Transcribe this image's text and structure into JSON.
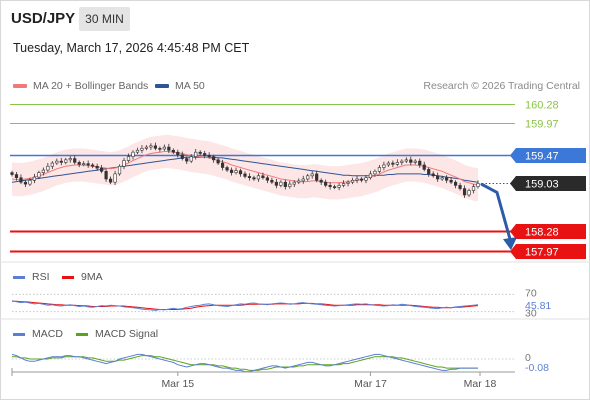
{
  "header": {
    "symbol": "USD/JPY",
    "timeframe": "30 MIN",
    "timestamp": "Tuesday, March 17, 2026 4:45:48 PM CET",
    "credit": "Research © 2026 Trading Central"
  },
  "legend": {
    "ma20": "MA 20 + Bollinger Bands",
    "ma50": "MA 50"
  },
  "colors": {
    "ma20": "#f07a7a",
    "ma50": "#2f5597",
    "band_fill": "#fde3e3",
    "resistance": "#8cc34a",
    "pivot": "#3c78d8",
    "support": "#e81212",
    "current": "#2a2a2a",
    "rsi": "#5b7fd6",
    "rsi_ma": "#e81212",
    "macd": "#5b7fd6",
    "macd_signal": "#5aa31c",
    "arrow": "#2a5ca8"
  },
  "chart_data": [
    {
      "type": "candlestick",
      "panel": "price",
      "y_range": [
        157.8,
        160.4
      ],
      "x_ticks": [
        "Mar 15",
        "Mar 17",
        "Mar 18"
      ],
      "levels": [
        {
          "name": "resistance",
          "value": 160.28,
          "label": "160.28"
        },
        {
          "name": "resistance",
          "value": 159.97,
          "label": "159.97"
        },
        {
          "name": "pivot",
          "value": 159.47,
          "label": "159.47"
        },
        {
          "name": "current",
          "value": 159.03,
          "label": "159.03"
        },
        {
          "name": "support",
          "value": 158.28,
          "label": "158.28"
        },
        {
          "name": "support",
          "value": 157.97,
          "label": "157.97"
        }
      ],
      "forecast": {
        "direction": "down",
        "from": 159.03,
        "to": 157.97
      },
      "close": [
        159.17,
        159.12,
        159.05,
        159.02,
        159.08,
        159.13,
        159.2,
        159.24,
        159.3,
        159.35,
        159.38,
        159.36,
        159.4,
        159.42,
        159.36,
        159.33,
        159.34,
        159.32,
        159.3,
        159.27,
        159.22,
        159.1,
        159.05,
        159.18,
        159.3,
        159.39,
        159.45,
        159.52,
        159.55,
        159.58,
        159.6,
        159.62,
        159.58,
        159.57,
        159.6,
        159.55,
        159.52,
        159.48,
        159.42,
        159.38,
        159.45,
        159.52,
        159.5,
        159.47,
        159.45,
        159.4,
        159.35,
        159.28,
        159.24,
        159.2,
        159.23,
        159.18,
        159.14,
        159.12,
        159.1,
        159.15,
        159.12,
        159.08,
        159.05,
        159.0,
        159.05,
        158.98,
        159.02,
        159.05,
        159.07,
        159.1,
        159.15,
        159.18,
        159.08,
        159.05,
        159.0,
        158.98,
        158.97,
        159.0,
        159.03,
        159.05,
        159.08,
        159.1,
        159.08,
        159.12,
        159.18,
        159.22,
        159.28,
        159.32,
        159.35,
        159.33,
        159.36,
        159.38,
        159.4,
        159.36,
        159.38,
        159.32,
        159.25,
        159.18,
        159.15,
        159.1,
        159.12,
        159.08,
        159.05,
        159.0,
        158.95,
        158.85,
        158.92,
        158.98,
        159.03
      ],
      "ma20": [
        159.1,
        159.09,
        159.09,
        159.1,
        159.11,
        159.13,
        159.15,
        159.17,
        159.2,
        159.23,
        159.26,
        159.28,
        159.3,
        159.31,
        159.32,
        159.32,
        159.32,
        159.31,
        159.3,
        159.29,
        159.28,
        159.27,
        159.26,
        159.27,
        159.29,
        159.32,
        159.35,
        159.39,
        159.42,
        159.45,
        159.48,
        159.5,
        159.51,
        159.52,
        159.53,
        159.53,
        159.52,
        159.51,
        159.5,
        159.48,
        159.47,
        159.46,
        159.45,
        159.44,
        159.43,
        159.41,
        159.39,
        159.37,
        159.35,
        159.32,
        159.3,
        159.28,
        159.26,
        159.24,
        159.22,
        159.2,
        159.18,
        159.16,
        159.14,
        159.12,
        159.1,
        159.09,
        159.08,
        159.07,
        159.06,
        159.06,
        159.06,
        159.07,
        159.07,
        159.06,
        159.05,
        159.04,
        159.04,
        159.04,
        159.05,
        159.06,
        159.07,
        159.08,
        159.09,
        159.11,
        159.13,
        159.15,
        159.18,
        159.21,
        159.24,
        159.26,
        159.28,
        159.3,
        159.32,
        159.32,
        159.32,
        159.31,
        159.3,
        159.28,
        159.26,
        159.24,
        159.22,
        159.19,
        159.16,
        159.13,
        159.1,
        159.06,
        159.04,
        159.02,
        159.01
      ],
      "ma50": [
        159.05,
        159.06,
        159.07,
        159.08,
        159.09,
        159.1,
        159.11,
        159.12,
        159.13,
        159.14,
        159.15,
        159.16,
        159.17,
        159.18,
        159.19,
        159.2,
        159.21,
        159.22,
        159.23,
        159.24,
        159.25,
        159.26,
        159.27,
        159.28,
        159.29,
        159.3,
        159.31,
        159.32,
        159.33,
        159.34,
        159.35,
        159.36,
        159.37,
        159.38,
        159.39,
        159.4,
        159.41,
        159.42,
        159.43,
        159.44,
        159.44,
        159.44,
        159.44,
        159.44,
        159.44,
        159.44,
        159.43,
        159.43,
        159.42,
        159.41,
        159.4,
        159.39,
        159.38,
        159.37,
        159.36,
        159.35,
        159.34,
        159.33,
        159.32,
        159.31,
        159.3,
        159.29,
        159.28,
        159.27,
        159.26,
        159.25,
        159.24,
        159.23,
        159.22,
        159.21,
        159.2,
        159.19,
        159.18,
        159.17,
        159.16,
        159.16,
        159.15,
        159.15,
        159.15,
        159.15,
        159.15,
        159.15,
        159.16,
        159.16,
        159.17,
        159.17,
        159.18,
        159.18,
        159.18,
        159.18,
        159.18,
        159.18,
        159.17,
        159.17,
        159.16,
        159.15,
        159.14,
        159.13,
        159.12,
        159.11,
        159.1,
        159.08,
        159.07,
        159.06,
        159.05
      ],
      "bb_width": 0.26
    },
    {
      "type": "line",
      "panel": "rsi",
      "y_range": [
        20,
        80
      ],
      "levels": [
        {
          "value": 70,
          "label": "70"
        },
        {
          "value": 30,
          "label": "30"
        }
      ],
      "last_value": 45.81,
      "series": [
        {
          "name": "RSI",
          "values": [
            55,
            53,
            51,
            52,
            50,
            48,
            49,
            47,
            45,
            46,
            44,
            43,
            45,
            46,
            44,
            42,
            43,
            41,
            40,
            42,
            44,
            43,
            45,
            44,
            43,
            41,
            40,
            39,
            38,
            36,
            35,
            34,
            33,
            35,
            34,
            36,
            38,
            36,
            37,
            40,
            42,
            44,
            45,
            47,
            48,
            46,
            44,
            43,
            42,
            44,
            46,
            48,
            47,
            49,
            50,
            48,
            47,
            46,
            48,
            49,
            50,
            49,
            47,
            48,
            50,
            51,
            49,
            48,
            47,
            46,
            45,
            44,
            43,
            44,
            45,
            46,
            47,
            48,
            47,
            48,
            46,
            45,
            44,
            43,
            44,
            46,
            45,
            47,
            46,
            44,
            42,
            41,
            40,
            39,
            38,
            37,
            39,
            40,
            39,
            41,
            42,
            43,
            44,
            45,
            45.81
          ]
        },
        {
          "name": "9MA",
          "values": [
            54,
            54,
            53,
            53,
            52,
            51,
            50,
            49,
            48,
            47,
            46,
            46,
            45,
            45,
            45,
            44,
            44,
            43,
            42,
            42,
            42,
            42,
            43,
            43,
            43,
            43,
            42,
            41,
            40,
            39,
            38,
            37,
            36,
            35,
            35,
            35,
            35,
            35,
            36,
            37,
            38,
            40,
            42,
            43,
            44,
            45,
            45,
            45,
            45,
            45,
            45,
            45,
            46,
            47,
            47,
            47,
            47,
            47,
            47,
            48,
            48,
            48,
            48,
            48,
            48,
            49,
            49,
            49,
            48,
            48,
            47,
            46,
            45,
            45,
            45,
            45,
            45,
            46,
            46,
            46,
            46,
            46,
            46,
            45,
            45,
            45,
            45,
            45,
            45,
            45,
            44,
            43,
            42,
            41,
            40,
            40,
            39,
            39,
            39,
            40,
            40,
            41,
            42,
            43,
            44
          ]
        }
      ]
    },
    {
      "type": "line",
      "panel": "macd",
      "y_range": [
        -0.14,
        0.14
      ],
      "levels": [
        {
          "value": 0,
          "label": "0"
        }
      ],
      "last_value": -0.08,
      "series": [
        {
          "name": "MACD",
          "values": [
            0.04,
            0.03,
            0.01,
            -0.01,
            -0.02,
            -0.02,
            -0.01,
            0.0,
            0.01,
            0.02,
            0.02,
            0.02,
            0.03,
            0.03,
            0.02,
            0.02,
            0.01,
            0.0,
            -0.01,
            -0.02,
            -0.03,
            -0.04,
            -0.03,
            -0.02,
            0.0,
            0.01,
            0.02,
            0.03,
            0.04,
            0.04,
            0.03,
            0.02,
            0.01,
            0.0,
            -0.01,
            -0.02,
            -0.03,
            -0.05,
            -0.06,
            -0.07,
            -0.06,
            -0.05,
            -0.04,
            -0.04,
            -0.05,
            -0.06,
            -0.07,
            -0.08,
            -0.08,
            -0.09,
            -0.1,
            -0.1,
            -0.11,
            -0.11,
            -0.1,
            -0.09,
            -0.08,
            -0.07,
            -0.06,
            -0.06,
            -0.07,
            -0.08,
            -0.07,
            -0.06,
            -0.05,
            -0.04,
            -0.03,
            -0.03,
            -0.04,
            -0.05,
            -0.06,
            -0.06,
            -0.05,
            -0.04,
            -0.03,
            -0.02,
            -0.01,
            0.0,
            0.01,
            0.02,
            0.03,
            0.04,
            0.04,
            0.03,
            0.02,
            0.01,
            0.0,
            -0.01,
            -0.02,
            -0.03,
            -0.04,
            -0.05,
            -0.06,
            -0.07,
            -0.08,
            -0.09,
            -0.1,
            -0.1,
            -0.09,
            -0.09,
            -0.08,
            -0.08,
            -0.08,
            -0.08,
            -0.08
          ]
        },
        {
          "name": "MACD Signal",
          "values": [
            0.02,
            0.02,
            0.01,
            0.01,
            0.0,
            0.0,
            0.0,
            0.0,
            0.0,
            0.01,
            0.01,
            0.01,
            0.02,
            0.02,
            0.02,
            0.02,
            0.02,
            0.01,
            0.01,
            0.0,
            -0.01,
            -0.02,
            -0.02,
            -0.02,
            -0.01,
            -0.01,
            0.0,
            0.01,
            0.02,
            0.03,
            0.03,
            0.03,
            0.02,
            0.02,
            0.01,
            0.0,
            -0.01,
            -0.02,
            -0.03,
            -0.04,
            -0.05,
            -0.05,
            -0.05,
            -0.05,
            -0.05,
            -0.05,
            -0.06,
            -0.06,
            -0.07,
            -0.08,
            -0.08,
            -0.09,
            -0.09,
            -0.1,
            -0.1,
            -0.1,
            -0.09,
            -0.09,
            -0.08,
            -0.07,
            -0.07,
            -0.07,
            -0.07,
            -0.07,
            -0.06,
            -0.06,
            -0.05,
            -0.05,
            -0.05,
            -0.05,
            -0.05,
            -0.05,
            -0.05,
            -0.05,
            -0.04,
            -0.04,
            -0.03,
            -0.02,
            -0.01,
            0.0,
            0.01,
            0.02,
            0.02,
            0.02,
            0.02,
            0.02,
            0.01,
            0.01,
            0.0,
            -0.01,
            -0.02,
            -0.03,
            -0.04,
            -0.05,
            -0.06,
            -0.07,
            -0.07,
            -0.08,
            -0.08,
            -0.08,
            -0.08,
            -0.08,
            -0.08,
            -0.08,
            -0.08
          ]
        }
      ]
    }
  ],
  "sub_legends": {
    "rsi": "RSI",
    "rsi_ma": "9MA",
    "macd": "MACD",
    "macd_signal": "MACD Signal"
  }
}
